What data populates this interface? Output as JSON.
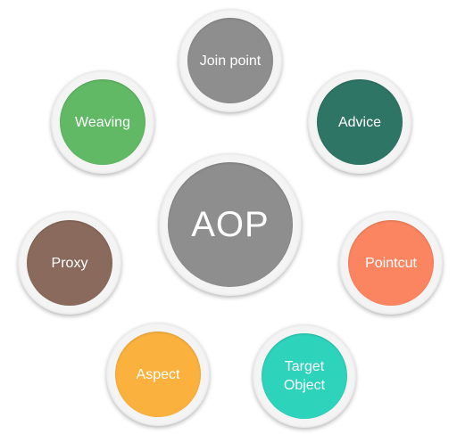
{
  "center": {
    "label": "AOP",
    "color": "#8e8e8e"
  },
  "nodes": [
    {
      "label": "Join point",
      "color": "#8e8e8e"
    },
    {
      "label": "Advice",
      "color": "#2f7566"
    },
    {
      "label": "Pointcut",
      "color": "#fb8561"
    },
    {
      "label": "Target Object",
      "color": "#2ed3bc"
    },
    {
      "label": "Aspect",
      "color": "#fbb13d"
    },
    {
      "label": "Proxy",
      "color": "#8a6a5c"
    },
    {
      "label": "Weaving",
      "color": "#61b965"
    }
  ]
}
